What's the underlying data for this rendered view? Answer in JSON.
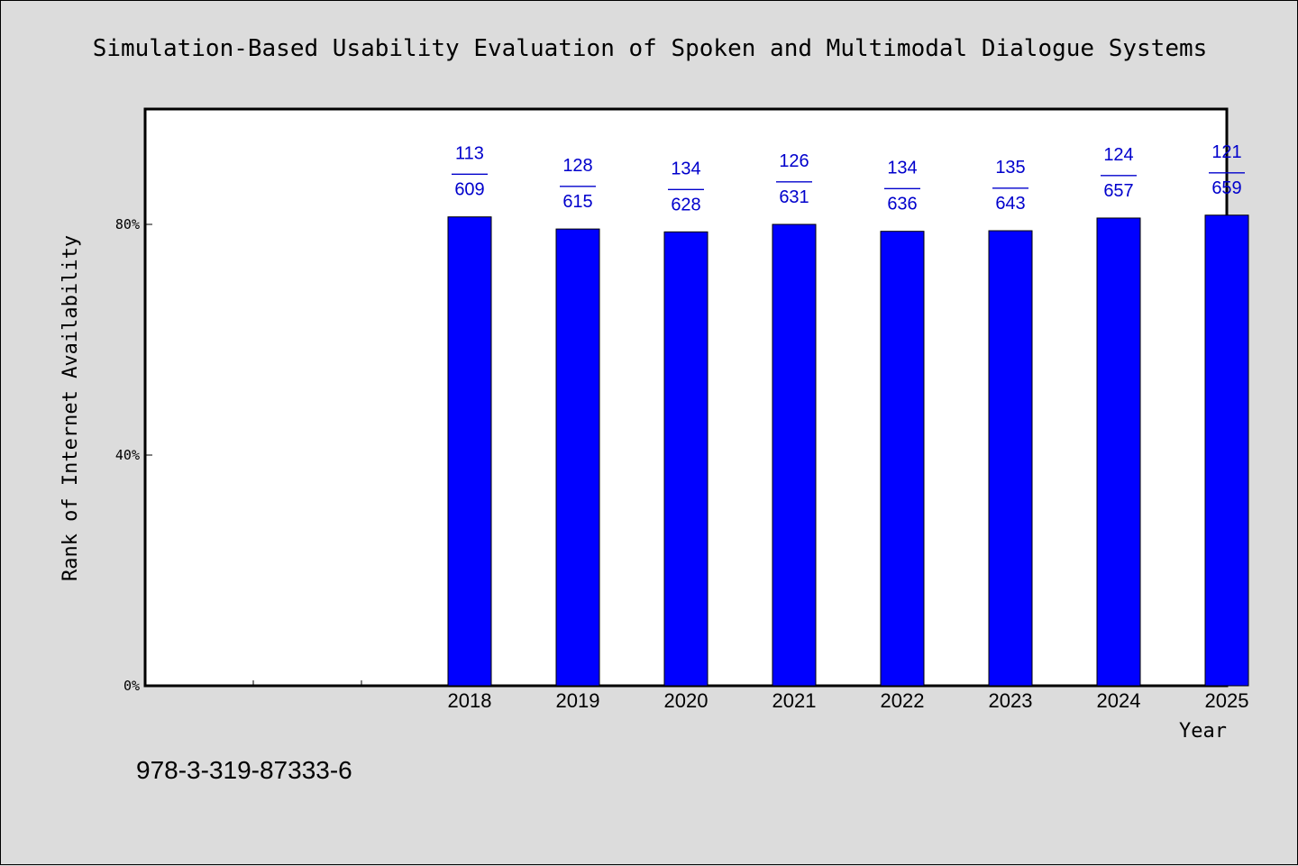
{
  "chart_data": {
    "type": "bar",
    "title": "Simulation-Based Usability Evaluation of Spoken and Multimodal Dialogue Systems",
    "xlabel": "Year",
    "ylabel": "Rank of Internet Availability",
    "categories": [
      "2018",
      "2019",
      "2020",
      "2021",
      "2022",
      "2023",
      "2024",
      "2025"
    ],
    "values": [
      81.3,
      79.2,
      78.7,
      80.0,
      78.8,
      78.9,
      81.1,
      81.6
    ],
    "data_labels": [
      {
        "rank": "113",
        "sep": "——",
        "total": "609"
      },
      {
        "rank": "128",
        "sep": "——",
        "total": "615"
      },
      {
        "rank": "134",
        "sep": "——",
        "total": "628"
      },
      {
        "rank": "126",
        "sep": "——",
        "total": "631"
      },
      {
        "rank": "134",
        "sep": "——",
        "total": "636"
      },
      {
        "rank": "135",
        "sep": "——",
        "total": "643"
      },
      {
        "rank": "124",
        "sep": "——",
        "total": "657"
      },
      {
        "rank": "121",
        "sep": "——",
        "total": "659"
      }
    ],
    "yticks": [
      {
        "value": 0,
        "label": "0%"
      },
      {
        "value": 40,
        "label": "40%"
      },
      {
        "value": 80,
        "label": "80%"
      }
    ],
    "ylim": [
      0,
      100
    ],
    "x_slots": 10,
    "first_category_slot": 2,
    "grid": false,
    "legend": "none",
    "colors": {
      "bar": "#0000ff",
      "bar_edge": "#000000",
      "data_label": "#0000cc",
      "plot_background": "#ffffff",
      "page_background": "#dcdcdc"
    }
  },
  "footnote": "978-3-319-87333-6"
}
